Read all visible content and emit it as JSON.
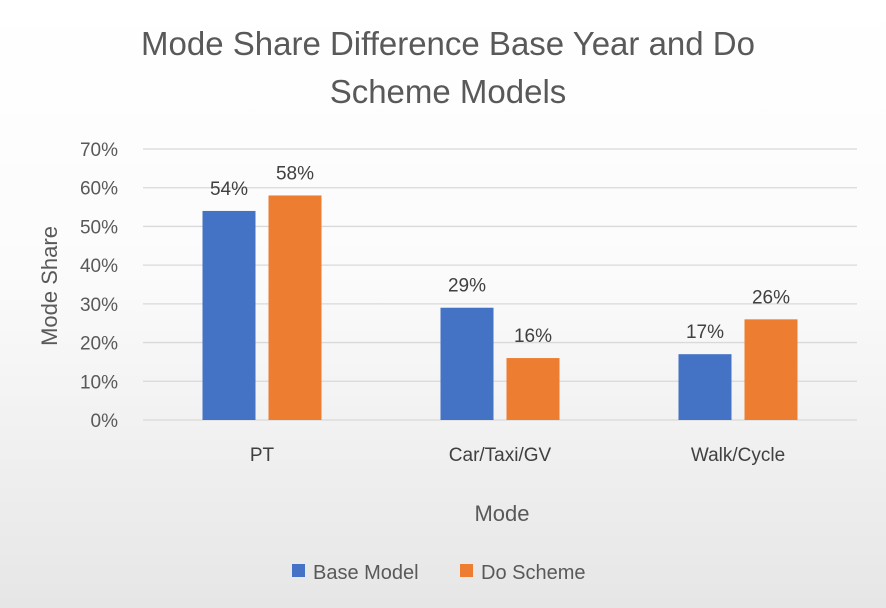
{
  "chart_data": {
    "type": "bar",
    "title_lines": [
      "Mode Share Difference Base Year and Do",
      "Scheme Models"
    ],
    "xlabel": "Mode",
    "ylabel": "Mode Share",
    "categories": [
      "PT",
      "Car/Taxi/GV",
      "Walk/Cycle"
    ],
    "series": [
      {
        "name": "Base Model",
        "values": [
          54,
          29,
          17
        ],
        "labels": [
          "54%",
          "29%",
          "17%"
        ],
        "color": "#4472c4"
      },
      {
        "name": "Do Scheme",
        "values": [
          58,
          16,
          26
        ],
        "labels": [
          "58%",
          "16%",
          "26%"
        ],
        "color": "#ed7d31"
      }
    ],
    "yticks": [
      "0%",
      "10%",
      "20%",
      "30%",
      "40%",
      "50%",
      "60%",
      "70%"
    ],
    "ylim": [
      0,
      70
    ],
    "grid": true,
    "legend_position": "bottom"
  }
}
